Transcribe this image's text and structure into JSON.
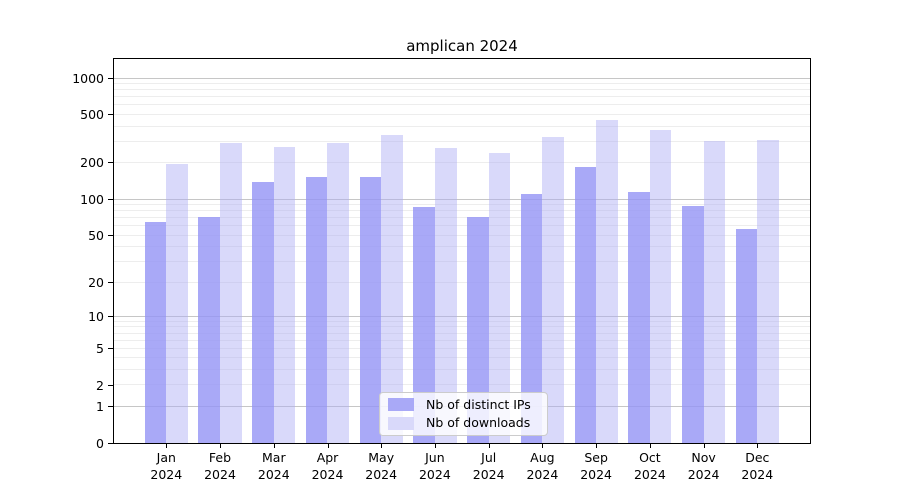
{
  "chart_data": {
    "type": "bar",
    "title": "amplican 2024",
    "xlabel": "",
    "ylabel": "",
    "categories": [
      "Jan",
      "Feb",
      "Mar",
      "Apr",
      "May",
      "Jun",
      "Jul",
      "Aug",
      "Sep",
      "Oct",
      "Nov",
      "Dec"
    ],
    "category_year": "2024",
    "series": [
      {
        "name": "Nb of distinct IPs",
        "values": [
          65,
          71,
          140,
          154,
          154,
          86,
          71,
          110,
          185,
          115,
          88,
          56
        ],
        "bar_color": "rgba(148,148,245,0.80)",
        "legend_color": "#a9a9f7"
      },
      {
        "name": "Nb of downloads",
        "values": [
          197,
          292,
          270,
          290,
          340,
          264,
          243,
          325,
          454,
          374,
          305,
          308
        ],
        "bar_color": "rgba(173,173,244,0.46)",
        "legend_color": "#d9d9fa"
      }
    ],
    "yscale": "log1p",
    "yticks": [
      0,
      1,
      2,
      5,
      10,
      20,
      50,
      100,
      200,
      500,
      1000
    ],
    "ylim": [
      0,
      1460
    ],
    "grid": true,
    "major_grid_at": [
      1,
      10,
      100,
      1000
    ],
    "legend_position": "lower center",
    "colors": {
      "major_grid": "#c6c6c6",
      "minor_grid": "#ededed",
      "axis": "#000000",
      "background": "#ffffff"
    }
  }
}
